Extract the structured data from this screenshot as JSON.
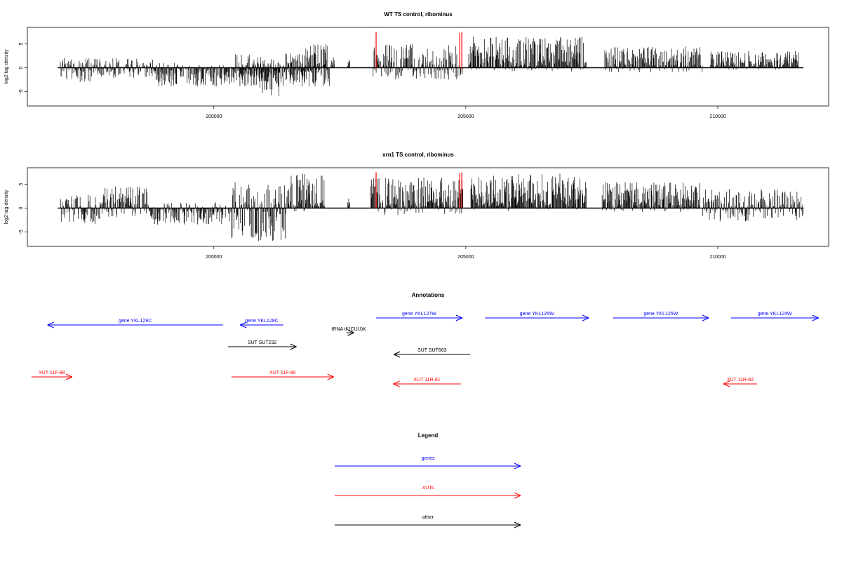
{
  "colors": {
    "black": "#000000",
    "red": "#ff0000",
    "blue": "#0000ff"
  },
  "chart_data": [
    {
      "type": "bar",
      "title": "WT TS control, ribominus",
      "xlabel": "",
      "ylabel": "log2 tag density",
      "xlim": [
        196300,
        212200
      ],
      "ylim": [
        -8,
        8
      ],
      "x_ticks": [
        200000,
        205000,
        210000
      ],
      "x_tick_labels": [
        "200000",
        "205000",
        "210000"
      ],
      "y_ticks": [
        -5,
        0,
        5
      ],
      "y_tick_labels": [
        "-5",
        "0",
        "5"
      ],
      "grid": false,
      "baseline": {
        "from": 196900,
        "to": 211700,
        "value": 0
      },
      "highlights": [
        {
          "x": 203220,
          "value": 7.5,
          "color": "#ff0000"
        },
        {
          "x": 204880,
          "value": 7.3,
          "color": "#ff0000"
        },
        {
          "x": 204920,
          "value": 7.5,
          "color": "#ff0000"
        }
      ],
      "segments": [
        {
          "from": 196950,
          "to": 197600,
          "min": -3.0,
          "max": 2.3
        },
        {
          "from": 197600,
          "to": 198800,
          "min": -2.2,
          "max": 2.0
        },
        {
          "from": 198800,
          "to": 202300,
          "min": -4.0,
          "max": 1.0
        },
        {
          "from": 202300,
          "to": 202400,
          "min": 0,
          "max": 3.0
        },
        {
          "from": 200400,
          "to": 200900,
          "min": -2.5,
          "max": 3.0
        },
        {
          "from": 200900,
          "to": 201350,
          "min": -6.0,
          "max": 2.5
        },
        {
          "from": 201400,
          "to": 201800,
          "min": -1.5,
          "max": 3.5
        },
        {
          "from": 201800,
          "to": 202250,
          "min": -0.5,
          "max": 5.0
        },
        {
          "from": 202650,
          "to": 202700,
          "min": 0,
          "max": 2.0
        },
        {
          "from": 203150,
          "to": 204950,
          "min": -2.5,
          "max": 5.0
        },
        {
          "from": 205050,
          "to": 207400,
          "min": -0.8,
          "max": 6.5
        },
        {
          "from": 207750,
          "to": 209700,
          "min": -1.0,
          "max": 4.5
        },
        {
          "from": 209850,
          "to": 211600,
          "min": -0.5,
          "max": 3.5
        }
      ]
    },
    {
      "type": "bar",
      "title": "xrn1 TS control, ribominus",
      "xlabel": "",
      "ylabel": "log2 tag density",
      "xlim": [
        196300,
        212200
      ],
      "ylim": [
        -8,
        8
      ],
      "x_ticks": [
        200000,
        205000,
        210000
      ],
      "x_tick_labels": [
        "200000",
        "205000",
        "210000"
      ],
      "y_ticks": [
        -5,
        0,
        5
      ],
      "y_tick_labels": [
        "-5",
        "0",
        "5"
      ],
      "grid": false,
      "baseline": {
        "from": 196900,
        "to": 211700,
        "value": 0
      },
      "highlights": [
        {
          "x": 203220,
          "value": 7.5,
          "color": "#ff0000"
        },
        {
          "x": 204880,
          "value": 7.3,
          "color": "#ff0000"
        },
        {
          "x": 204920,
          "value": 7.5,
          "color": "#ff0000"
        }
      ],
      "segments": [
        {
          "from": 196950,
          "to": 197800,
          "min": -3.5,
          "max": 2.8
        },
        {
          "from": 197800,
          "to": 198700,
          "min": -2.0,
          "max": 4.5
        },
        {
          "from": 198700,
          "to": 200350,
          "min": -3.5,
          "max": 1.2
        },
        {
          "from": 200350,
          "to": 201450,
          "min": -7.0,
          "max": 5.5
        },
        {
          "from": 201450,
          "to": 202200,
          "min": -1.0,
          "max": 7.5
        },
        {
          "from": 202650,
          "to": 202700,
          "min": 0,
          "max": 2.0
        },
        {
          "from": 203100,
          "to": 204950,
          "min": -1.5,
          "max": 6.5
        },
        {
          "from": 205100,
          "to": 207400,
          "min": -0.5,
          "max": 7.2
        },
        {
          "from": 207700,
          "to": 209650,
          "min": -0.8,
          "max": 5.5
        },
        {
          "from": 209700,
          "to": 211700,
          "min": -2.8,
          "max": 4.0
        }
      ]
    }
  ],
  "annotations": {
    "title": "Annotations",
    "items": [
      {
        "label": "gene YKL129C",
        "from": 200180,
        "to": 196700,
        "color": "#0000ff",
        "row": "upper"
      },
      {
        "label": "gene YKL128C",
        "from": 201380,
        "to": 200520,
        "color": "#0000ff",
        "row": "upper"
      },
      {
        "label": "gene YKL127W",
        "from": 203220,
        "to": 204930,
        "color": "#0000ff",
        "row": "top"
      },
      {
        "label": "gene YKL126W",
        "from": 205380,
        "to": 207440,
        "color": "#0000ff",
        "row": "top"
      },
      {
        "label": "gene YKL125W",
        "from": 207920,
        "to": 209820,
        "color": "#0000ff",
        "row": "top"
      },
      {
        "label": "gene YKL124W",
        "from": 210260,
        "to": 212000,
        "color": "#0000ff",
        "row": "top"
      },
      {
        "label": "tRNA tK(CUU)K",
        "from": 202630,
        "to": 202780,
        "color": "#000000",
        "row": "trna"
      },
      {
        "label": "SUT SUT232",
        "from": 200280,
        "to": 201640,
        "color": "#000000",
        "row": "mid"
      },
      {
        "label": "SUT SUT663",
        "from": 205090,
        "to": 203570,
        "color": "#000000",
        "row": "mid2"
      },
      {
        "label": "XUT 11F-88",
        "from": 196380,
        "to": 197190,
        "color": "#ff0000",
        "row": "low"
      },
      {
        "label": "XUT 11F-90",
        "from": 200350,
        "to": 202380,
        "color": "#ff0000",
        "row": "low"
      },
      {
        "label": "XUT 11R-81",
        "from": 204900,
        "to": 203560,
        "color": "#ff0000",
        "row": "low2"
      },
      {
        "label": "XUT 11R-82",
        "from": 210780,
        "to": 210110,
        "color": "#ff0000",
        "row": "low2"
      }
    ]
  },
  "legend": {
    "title": "Legend",
    "items": [
      {
        "label": "genes",
        "color": "#0000ff"
      },
      {
        "label": "XUTs",
        "color": "#ff0000"
      },
      {
        "label": "other",
        "color": "#000000"
      }
    ]
  }
}
